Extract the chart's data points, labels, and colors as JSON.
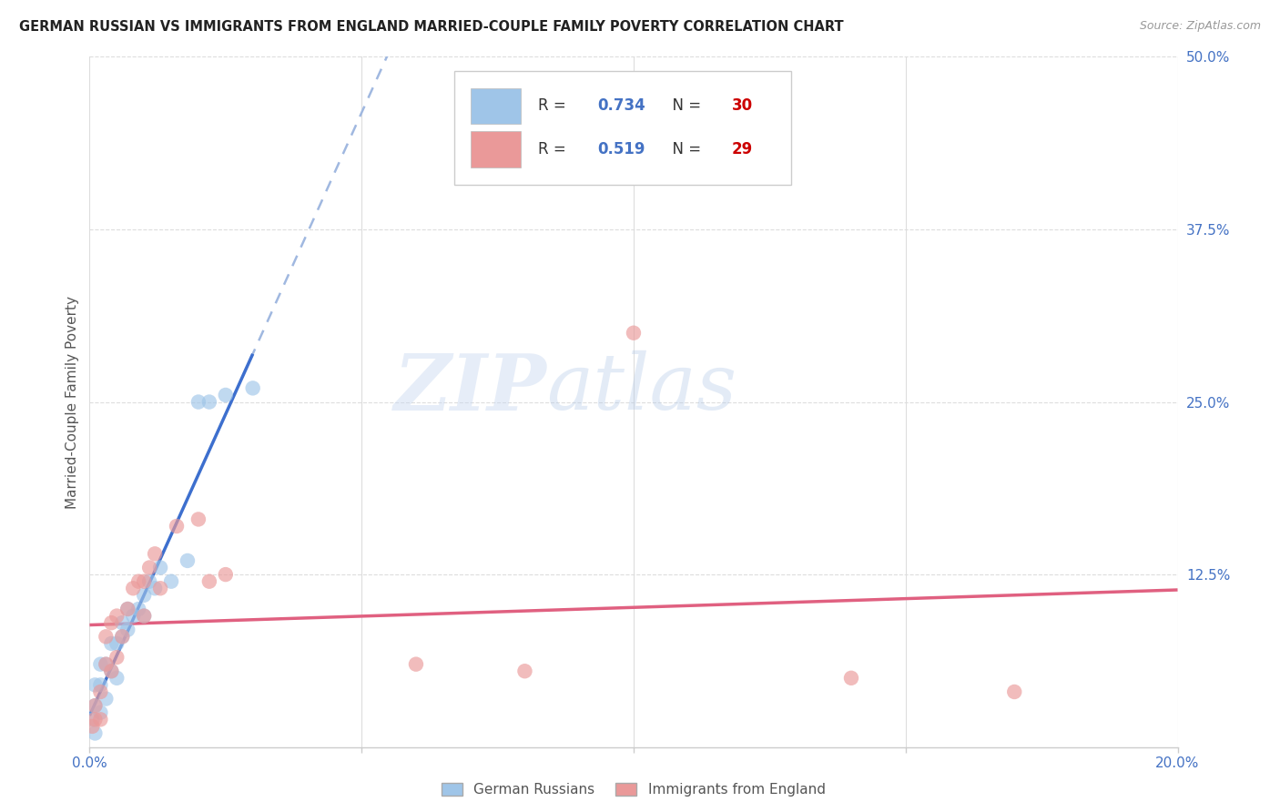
{
  "title": "GERMAN RUSSIAN VS IMMIGRANTS FROM ENGLAND MARRIED-COUPLE FAMILY POVERTY CORRELATION CHART",
  "source": "Source: ZipAtlas.com",
  "ylabel": "Married-Couple Family Poverty",
  "xlim": [
    0.0,
    0.2
  ],
  "ylim": [
    0.0,
    0.5
  ],
  "ytick_vals": [
    0.125,
    0.25,
    0.375,
    0.5
  ],
  "ytick_labels": [
    "12.5%",
    "25.0%",
    "37.5%",
    "50.0%"
  ],
  "xtick_vals": [
    0.0,
    0.05,
    0.1,
    0.15,
    0.2
  ],
  "xtick_labels": [
    "0.0%",
    "",
    "",
    "",
    "20.0%"
  ],
  "legend_label1": "German Russians",
  "legend_label2": "Immigrants from England",
  "R1": 0.734,
  "N1": 30,
  "R2": 0.519,
  "N2": 29,
  "color_blue": "#9fc5e8",
  "color_pink": "#ea9999",
  "trendline1_color": "#3d6fce",
  "trendline2_color": "#e06080",
  "trendline_dashed_color": "#a0b8e0",
  "blue_x": [
    0.0005,
    0.001,
    0.001,
    0.001,
    0.002,
    0.002,
    0.002,
    0.003,
    0.003,
    0.004,
    0.004,
    0.005,
    0.005,
    0.006,
    0.006,
    0.007,
    0.007,
    0.008,
    0.009,
    0.01,
    0.01,
    0.011,
    0.012,
    0.013,
    0.015,
    0.018,
    0.02,
    0.022,
    0.025,
    0.03
  ],
  "blue_y": [
    0.02,
    0.01,
    0.03,
    0.045,
    0.025,
    0.045,
    0.06,
    0.035,
    0.06,
    0.055,
    0.075,
    0.05,
    0.075,
    0.08,
    0.09,
    0.085,
    0.1,
    0.095,
    0.1,
    0.095,
    0.11,
    0.12,
    0.115,
    0.13,
    0.12,
    0.135,
    0.25,
    0.25,
    0.255,
    0.26
  ],
  "pink_x": [
    0.0005,
    0.001,
    0.001,
    0.002,
    0.002,
    0.003,
    0.003,
    0.004,
    0.004,
    0.005,
    0.005,
    0.006,
    0.007,
    0.008,
    0.009,
    0.01,
    0.01,
    0.011,
    0.012,
    0.013,
    0.016,
    0.02,
    0.022,
    0.025,
    0.06,
    0.08,
    0.1,
    0.14,
    0.17
  ],
  "pink_y": [
    0.015,
    0.02,
    0.03,
    0.02,
    0.04,
    0.06,
    0.08,
    0.055,
    0.09,
    0.065,
    0.095,
    0.08,
    0.1,
    0.115,
    0.12,
    0.095,
    0.12,
    0.13,
    0.14,
    0.115,
    0.16,
    0.165,
    0.12,
    0.125,
    0.06,
    0.055,
    0.3,
    0.05,
    0.04
  ],
  "watermark_line1": "ZIP",
  "watermark_line2": "atlas",
  "background_color": "#ffffff",
  "grid_color": "#dddddd",
  "legend_R_color": "#4472c4",
  "legend_N_color": "#cc0000",
  "title_color": "#222222",
  "axis_label_color": "#555555",
  "tick_color": "#4472c4"
}
